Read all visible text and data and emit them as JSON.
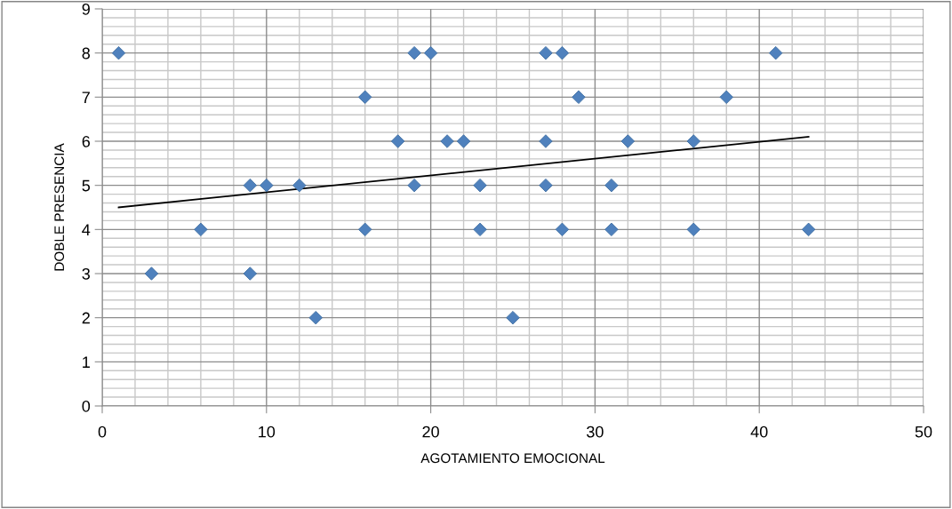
{
  "chart_data": {
    "type": "scatter",
    "xlabel": "AGOTAMIENTO EMOCIONAL",
    "ylabel": "DOBLE PRESENCIA",
    "xlim": [
      0,
      50
    ],
    "xticks": [
      0,
      10,
      20,
      30,
      40,
      50
    ],
    "ylim": [
      0,
      9
    ],
    "yticks": [
      0,
      1,
      2,
      3,
      4,
      5,
      6,
      7,
      8,
      9
    ],
    "grid": true,
    "series": [
      {
        "marker": "diamond",
        "color": "#4f81bd",
        "x": [
          1,
          3,
          6,
          9,
          9,
          10,
          12,
          13,
          16,
          16,
          18,
          19,
          19,
          20,
          21,
          22,
          23,
          23,
          25,
          27,
          27,
          27,
          28,
          28,
          29,
          31,
          31,
          32,
          36,
          36,
          38,
          41,
          43
        ],
        "values": [
          8,
          3,
          4,
          5,
          3,
          5,
          5,
          2,
          7,
          4,
          6,
          8,
          5,
          8,
          6,
          6,
          5,
          4,
          2,
          8,
          6,
          5,
          8,
          4,
          7,
          5,
          4,
          6,
          6,
          4,
          7,
          8,
          4
        ]
      },
      {
        "type": "line",
        "color": "#000000",
        "x": [
          1,
          43
        ],
        "values": [
          4.5,
          6.1
        ]
      }
    ]
  }
}
